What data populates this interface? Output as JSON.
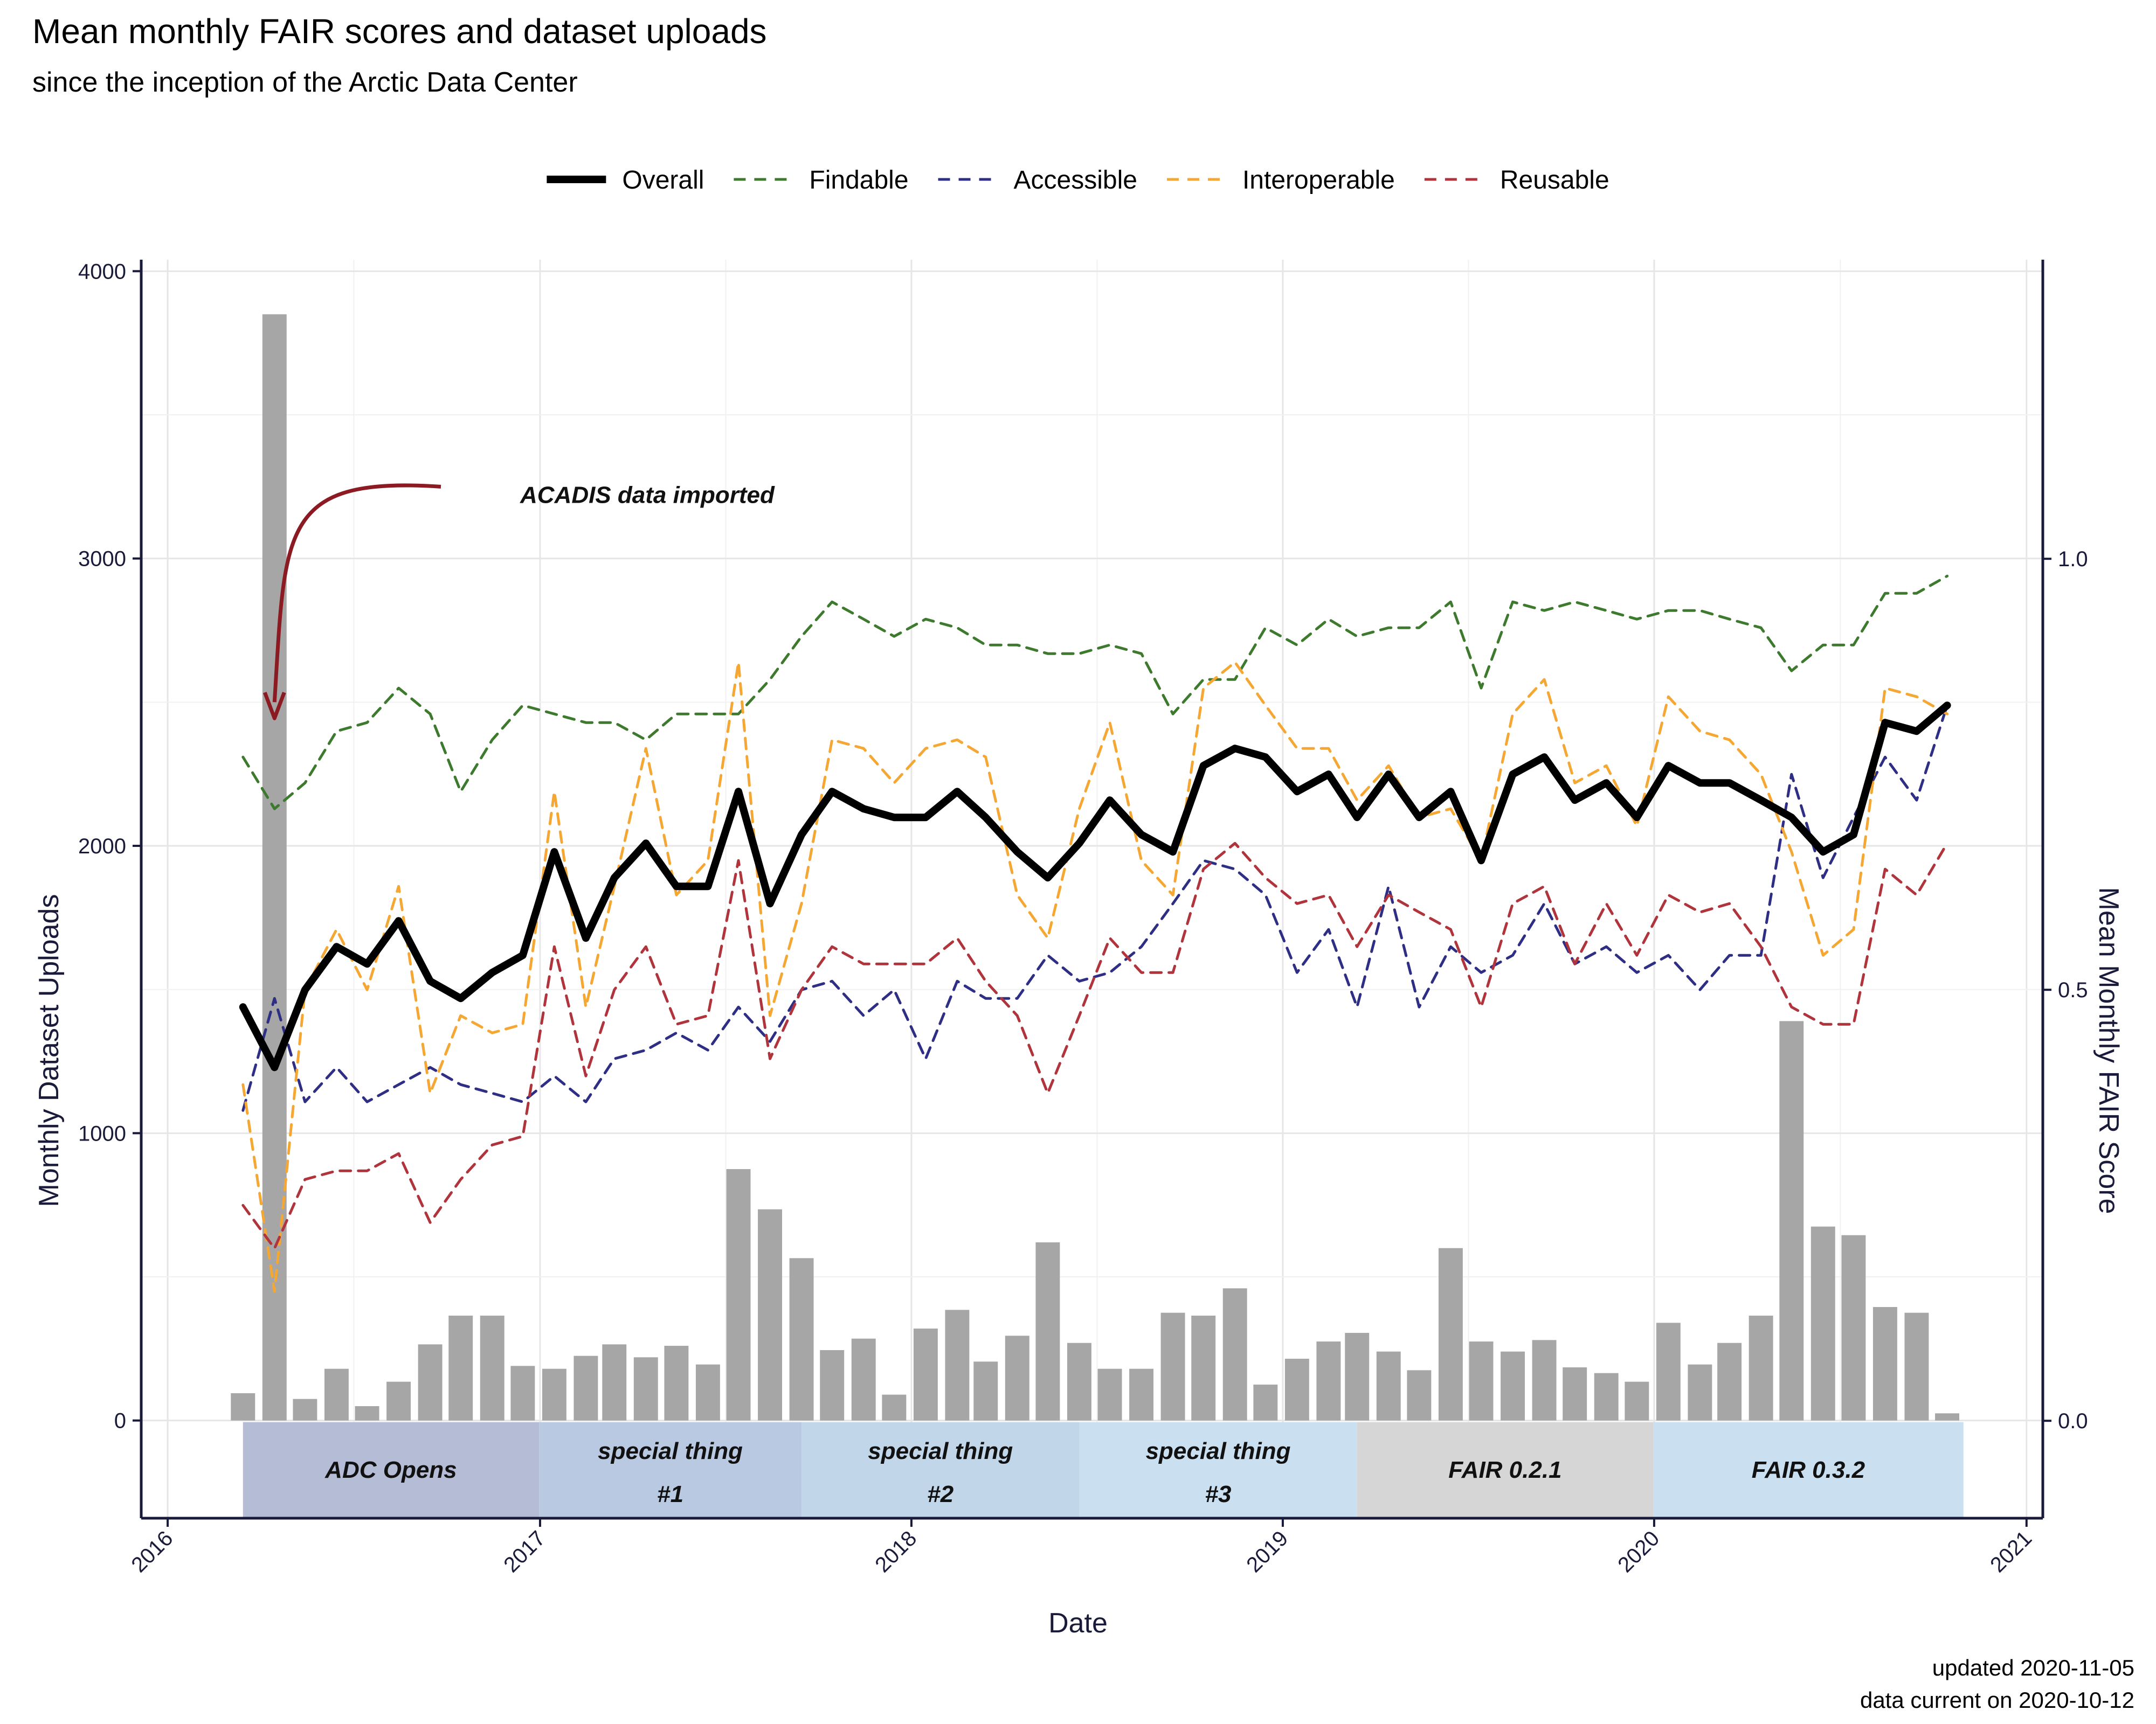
{
  "title": "Mean monthly FAIR scores and dataset uploads",
  "subtitle": "since the inception of the Arctic Data Center",
  "footer": {
    "updated": "updated 2020-11-05",
    "current": "data current on 2020-10-12"
  },
  "colors": {
    "overall": "#000000",
    "findable": "#3d7a2e",
    "accessible": "#2e2e85",
    "interoperable": "#f5a733",
    "reusable": "#b0343c",
    "bars": "#a6a6a6",
    "annotation_arrow": "#8b1a22",
    "axis": "#1a1a3a"
  },
  "chart_data": {
    "type": "bar+line",
    "xlabel": "Date",
    "ylabel_left": "Monthly Dataset Uploads",
    "ylabel_right": "Mean Monthly FAIR Score",
    "xlim": [
      "2015-12-06",
      "2021-01-17"
    ],
    "ylim_left": [
      -340,
      4040
    ],
    "ylim_right": [
      -0.113,
      1.347
    ],
    "x_ticks": [
      "2016",
      "2017",
      "2018",
      "2019",
      "2020",
      "2021"
    ],
    "x_tick_dates": [
      "2016-01-01",
      "2017-01-01",
      "2018-01-01",
      "2019-01-01",
      "2020-01-01",
      "2021-01-01"
    ],
    "y_ticks_left": [
      "0",
      "1000",
      "2000",
      "3000",
      "4000"
    ],
    "y_ticks_right": [
      "0.0",
      "0.5",
      "1.0"
    ],
    "grid": true,
    "legend_position": "top",
    "legend": [
      "Overall",
      "Findable",
      "Accessible",
      "Interoperable",
      "Reusable"
    ],
    "months": [
      "2016-03",
      "2016-04",
      "2016-05",
      "2016-06",
      "2016-07",
      "2016-08",
      "2016-09",
      "2016-10",
      "2016-11",
      "2016-12",
      "2017-01",
      "2017-02",
      "2017-03",
      "2017-04",
      "2017-05",
      "2017-06",
      "2017-07",
      "2017-08",
      "2017-09",
      "2017-10",
      "2017-11",
      "2017-12",
      "2018-01",
      "2018-02",
      "2018-03",
      "2018-04",
      "2018-05",
      "2018-06",
      "2018-07",
      "2018-08",
      "2018-09",
      "2018-10",
      "2018-11",
      "2018-12",
      "2019-01",
      "2019-02",
      "2019-03",
      "2019-04",
      "2019-05",
      "2019-06",
      "2019-07",
      "2019-08",
      "2019-09",
      "2019-10",
      "2019-11",
      "2019-12",
      "2020-01",
      "2020-02",
      "2020-03",
      "2020-04",
      "2020-05",
      "2020-06",
      "2020-07",
      "2020-08",
      "2020-09",
      "2020-10"
    ],
    "uploads": [
      95,
      3850,
      75,
      180,
      50,
      135,
      265,
      365,
      365,
      190,
      180,
      225,
      265,
      220,
      260,
      195,
      875,
      735,
      565,
      245,
      285,
      90,
      320,
      385,
      205,
      295,
      620,
      270,
      180,
      180,
      375,
      365,
      460,
      125,
      215,
      275,
      305,
      240,
      175,
      600,
      275,
      240,
      280,
      185,
      165,
      135,
      340,
      195,
      270,
      365,
      1390,
      675,
      645,
      395,
      375,
      25
    ],
    "series": [
      {
        "name": "Overall",
        "values": [
          0.48,
          0.41,
          0.5,
          0.55,
          0.53,
          0.58,
          0.51,
          0.49,
          0.52,
          0.54,
          0.66,
          0.56,
          0.63,
          0.67,
          0.62,
          0.62,
          0.73,
          0.6,
          0.68,
          0.73,
          0.71,
          0.7,
          0.7,
          0.73,
          0.7,
          0.66,
          0.63,
          0.67,
          0.72,
          0.68,
          0.66,
          0.76,
          0.78,
          0.77,
          0.73,
          0.75,
          0.7,
          0.75,
          0.7,
          0.73,
          0.65,
          0.75,
          0.77,
          0.72,
          0.74,
          0.7,
          0.76,
          0.74,
          0.74,
          0.72,
          0.7,
          0.66,
          0.68,
          0.81,
          0.8,
          0.83
        ]
      },
      {
        "name": "Findable",
        "values": [
          0.77,
          0.71,
          0.74,
          0.8,
          0.81,
          0.85,
          0.82,
          0.73,
          0.79,
          0.83,
          0.82,
          0.81,
          0.81,
          0.79,
          0.82,
          0.82,
          0.82,
          0.86,
          0.91,
          0.95,
          0.93,
          0.91,
          0.93,
          0.92,
          0.9,
          0.9,
          0.89,
          0.89,
          0.9,
          0.89,
          0.82,
          0.86,
          0.86,
          0.92,
          0.9,
          0.93,
          0.91,
          0.92,
          0.92,
          0.95,
          0.85,
          0.95,
          0.94,
          0.95,
          0.94,
          0.93,
          0.94,
          0.94,
          0.93,
          0.92,
          0.87,
          0.9,
          0.9,
          0.96,
          0.96,
          0.98
        ]
      },
      {
        "name": "Accessible",
        "values": [
          0.36,
          0.49,
          0.37,
          0.41,
          0.37,
          0.39,
          0.41,
          0.39,
          0.38,
          0.37,
          0.4,
          0.37,
          0.42,
          0.43,
          0.45,
          0.43,
          0.48,
          0.44,
          0.5,
          0.51,
          0.47,
          0.5,
          0.42,
          0.51,
          0.49,
          0.49,
          0.54,
          0.51,
          0.52,
          0.55,
          0.6,
          0.65,
          0.64,
          0.61,
          0.52,
          0.57,
          0.48,
          0.62,
          0.48,
          0.55,
          0.52,
          0.54,
          0.6,
          0.53,
          0.55,
          0.52,
          0.54,
          0.5,
          0.54,
          0.54,
          0.75,
          0.63,
          0.7,
          0.77,
          0.72,
          0.83
        ]
      },
      {
        "name": "Interoperable",
        "values": [
          0.39,
          0.15,
          0.5,
          0.57,
          0.5,
          0.62,
          0.38,
          0.47,
          0.45,
          0.46,
          0.73,
          0.48,
          0.62,
          0.78,
          0.61,
          0.65,
          0.88,
          0.47,
          0.6,
          0.79,
          0.78,
          0.74,
          0.78,
          0.79,
          0.77,
          0.61,
          0.56,
          0.71,
          0.81,
          0.65,
          0.61,
          0.85,
          0.88,
          0.83,
          0.78,
          0.78,
          0.72,
          0.76,
          0.7,
          0.71,
          0.65,
          0.82,
          0.86,
          0.74,
          0.76,
          0.69,
          0.84,
          0.8,
          0.79,
          0.75,
          0.66,
          0.54,
          0.57,
          0.85,
          0.84,
          0.82
        ]
      },
      {
        "name": "Reusable",
        "values": [
          0.25,
          0.2,
          0.28,
          0.29,
          0.29,
          0.31,
          0.23,
          0.28,
          0.32,
          0.33,
          0.55,
          0.4,
          0.5,
          0.55,
          0.46,
          0.47,
          0.65,
          0.42,
          0.5,
          0.55,
          0.53,
          0.53,
          0.53,
          0.56,
          0.51,
          0.47,
          0.38,
          0.47,
          0.56,
          0.52,
          0.52,
          0.64,
          0.67,
          0.63,
          0.6,
          0.61,
          0.55,
          0.61,
          0.59,
          0.57,
          0.48,
          0.6,
          0.62,
          0.53,
          0.6,
          0.54,
          0.61,
          0.59,
          0.6,
          0.55,
          0.48,
          0.46,
          0.46,
          0.64,
          0.61,
          0.67
        ]
      }
    ],
    "phases": [
      {
        "start": "2016-03-15",
        "end": "2016-12-31",
        "label": [
          "ADC Opens"
        ],
        "color": "#b4bcd6"
      },
      {
        "start": "2016-12-31",
        "end": "2017-09-15",
        "label": [
          "special thing",
          "#1"
        ],
        "color": "#b9c9e1"
      },
      {
        "start": "2017-09-15",
        "end": "2018-06-15",
        "label": [
          "special thing",
          "#2"
        ],
        "color": "#c2d6ea"
      },
      {
        "start": "2018-06-15",
        "end": "2019-03-15",
        "label": [
          "special thing",
          "#3"
        ],
        "color": "#cadfef"
      },
      {
        "start": "2019-03-15",
        "end": "2019-12-31",
        "label": [
          "FAIR 0.2.1"
        ],
        "color": "#d6d6d6"
      },
      {
        "start": "2019-12-31",
        "end": "2020-10-31",
        "label": [
          "FAIR 0.3.2"
        ],
        "color": "#cadff0"
      }
    ],
    "annotation": {
      "text": "ACADIS data imported",
      "target_month": "2016-04"
    }
  }
}
